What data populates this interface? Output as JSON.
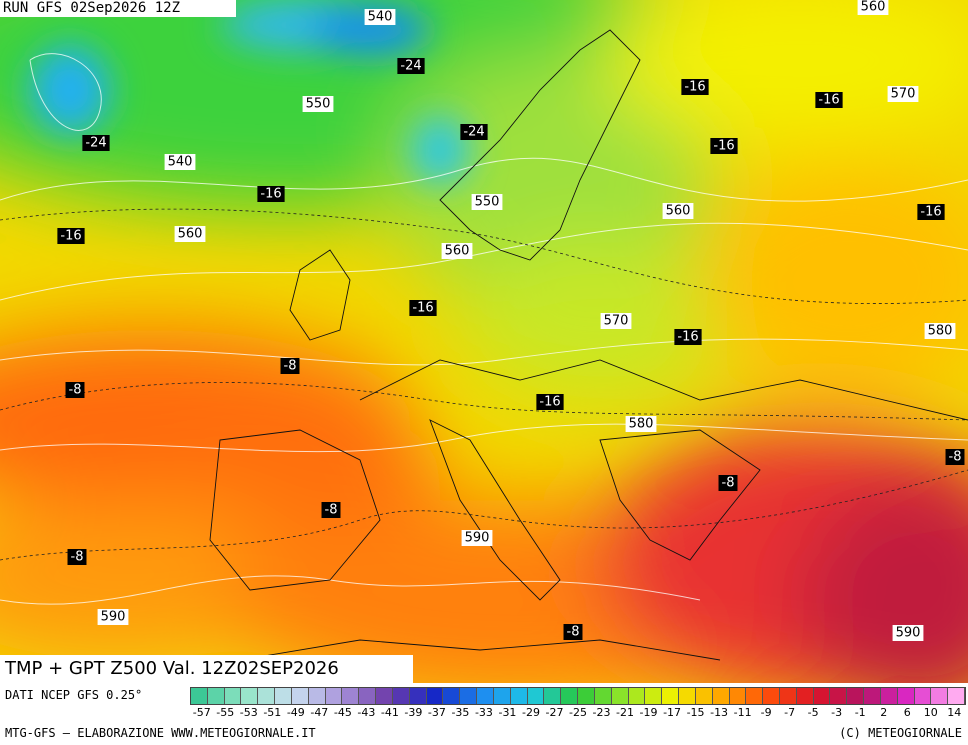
{
  "header": {
    "run": "RUN GFS 02Sep2026 12Z"
  },
  "map": {
    "title": "TMP + GPT Z500 Val. 12Z02SEP2026",
    "labels": [
      {
        "kind": "gpt",
        "value": 540
      },
      {
        "kind": "gpt",
        "value": 560
      },
      {
        "kind": "tmp",
        "value": -24
      },
      {
        "kind": "tmp",
        "value": -16
      },
      {
        "kind": "tmp",
        "value": -16
      },
      {
        "kind": "gpt",
        "value": 570
      },
      {
        "kind": "gpt",
        "value": 550
      },
      {
        "kind": "tmp",
        "value": -24
      },
      {
        "kind": "tmp",
        "value": -24
      },
      {
        "kind": "tmp",
        "value": -16
      },
      {
        "kind": "gpt",
        "value": 540
      },
      {
        "kind": "tmp",
        "value": -16
      },
      {
        "kind": "gpt",
        "value": 550
      },
      {
        "kind": "tmp",
        "value": -16
      },
      {
        "kind": "gpt",
        "value": 560
      },
      {
        "kind": "tmp",
        "value": -16
      },
      {
        "kind": "gpt",
        "value": 560
      },
      {
        "kind": "gpt",
        "value": 560
      },
      {
        "kind": "tmp",
        "value": -16
      },
      {
        "kind": "gpt",
        "value": 570
      },
      {
        "kind": "tmp",
        "value": -16
      },
      {
        "kind": "gpt",
        "value": 580
      },
      {
        "kind": "tmp",
        "value": -8
      },
      {
        "kind": "tmp",
        "value": -8
      },
      {
        "kind": "tmp",
        "value": -16
      },
      {
        "kind": "gpt",
        "value": 580
      },
      {
        "kind": "tmp",
        "value": -8
      },
      {
        "kind": "tmp",
        "value": -8
      },
      {
        "kind": "tmp",
        "value": -8
      },
      {
        "kind": "gpt",
        "value": 590
      },
      {
        "kind": "tmp",
        "value": -8
      },
      {
        "kind": "gpt",
        "value": 590
      },
      {
        "kind": "tmp",
        "value": -8
      },
      {
        "kind": "gpt",
        "value": 590
      }
    ]
  },
  "legend": {
    "source": "DATI NCEP GFS 0.25°",
    "ticks": [
      -57,
      -55,
      -53,
      -51,
      -49,
      -47,
      -45,
      -43,
      -41,
      -39,
      -37,
      -35,
      -33,
      -31,
      -29,
      -27,
      -25,
      -23,
      -21,
      -19,
      -17,
      -15,
      -13,
      -11,
      -9,
      -7,
      -5,
      -3,
      -1,
      2,
      6,
      10,
      14
    ]
  },
  "footer": {
    "left": "MTG-GFS — ELABORAZIONE WWW.METEOGIORNALE.IT",
    "right": "(C) METEOGIORNALE"
  }
}
